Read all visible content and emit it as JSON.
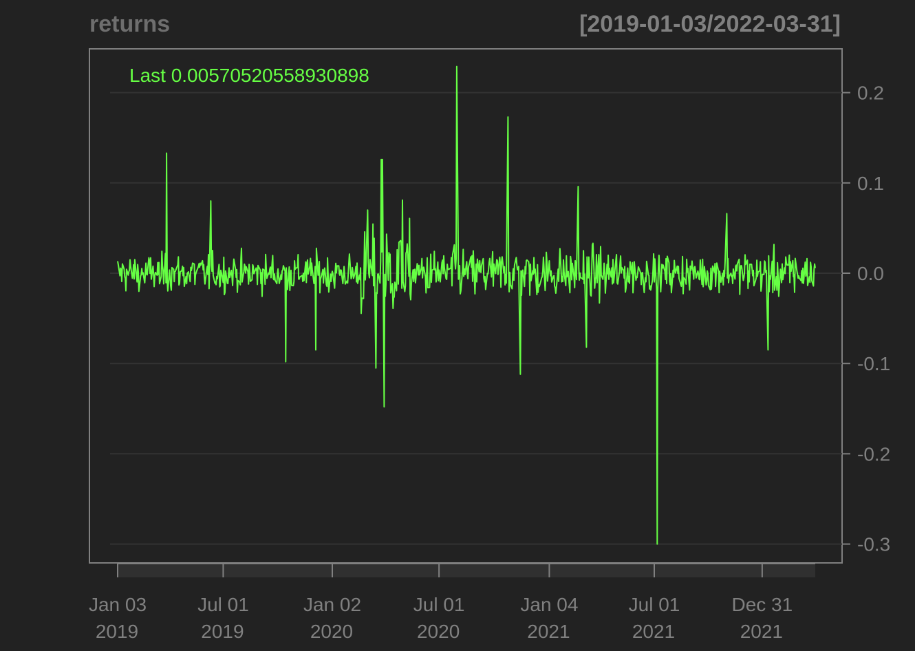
{
  "chart_data": {
    "type": "line",
    "title": "returns",
    "range_label": "[2019-01-03/2022-03-31]",
    "last_label": "Last 0.00570520558930898",
    "series": [
      {
        "name": "returns",
        "color": "#66ff44"
      }
    ],
    "x_range": [
      "2019-01-03",
      "2022-03-31"
    ],
    "ylim": [
      -0.3,
      0.2
    ],
    "y_ticks": [
      {
        "value": 0.2,
        "label": "0.2"
      },
      {
        "value": 0.1,
        "label": "0.1"
      },
      {
        "value": 0.0,
        "label": "0.0"
      },
      {
        "value": -0.1,
        "label": "-0.1"
      },
      {
        "value": -0.2,
        "label": "-0.2"
      },
      {
        "value": -0.3,
        "label": "-0.3"
      }
    ],
    "x_ticks": [
      {
        "date": "2019-01-03",
        "label1": "Jan 03",
        "label2": "2019"
      },
      {
        "date": "2019-07-01",
        "label1": "Jul 01",
        "label2": "2019"
      },
      {
        "date": "2020-01-02",
        "label1": "Jan 02",
        "label2": "2020"
      },
      {
        "date": "2020-07-01",
        "label1": "Jul 01",
        "label2": "2020"
      },
      {
        "date": "2021-01-04",
        "label1": "Jan 04",
        "label2": "2021"
      },
      {
        "date": "2021-07-01",
        "label1": "Jul 01",
        "label2": "2021"
      },
      {
        "date": "2021-12-31",
        "label1": "Dec 31",
        "label2": "2021"
      }
    ],
    "spikes": [
      {
        "date": "2019-03-27",
        "value": 0.133
      },
      {
        "date": "2019-06-10",
        "value": 0.08
      },
      {
        "date": "2019-10-15",
        "value": -0.098
      },
      {
        "date": "2019-12-05",
        "value": -0.085
      },
      {
        "date": "2020-03-02",
        "value": 0.07
      },
      {
        "date": "2020-03-16",
        "value": -0.105
      },
      {
        "date": "2020-03-25",
        "value": 0.126
      },
      {
        "date": "2020-03-27",
        "value": 0.126
      },
      {
        "date": "2020-03-30",
        "value": -0.148
      },
      {
        "date": "2020-04-30",
        "value": 0.081
      },
      {
        "date": "2020-07-31",
        "value": 0.229
      },
      {
        "date": "2020-10-26",
        "value": 0.173
      },
      {
        "date": "2020-11-16",
        "value": -0.112
      },
      {
        "date": "2021-02-22",
        "value": 0.096
      },
      {
        "date": "2021-03-08",
        "value": -0.082
      },
      {
        "date": "2021-07-06",
        "value": -0.3
      },
      {
        "date": "2021-11-01",
        "value": 0.066
      },
      {
        "date": "2022-01-10",
        "value": -0.085
      }
    ],
    "last_value": 0.00570520558930898,
    "grid": true,
    "background": "#222222",
    "axis_color": "#808080"
  }
}
